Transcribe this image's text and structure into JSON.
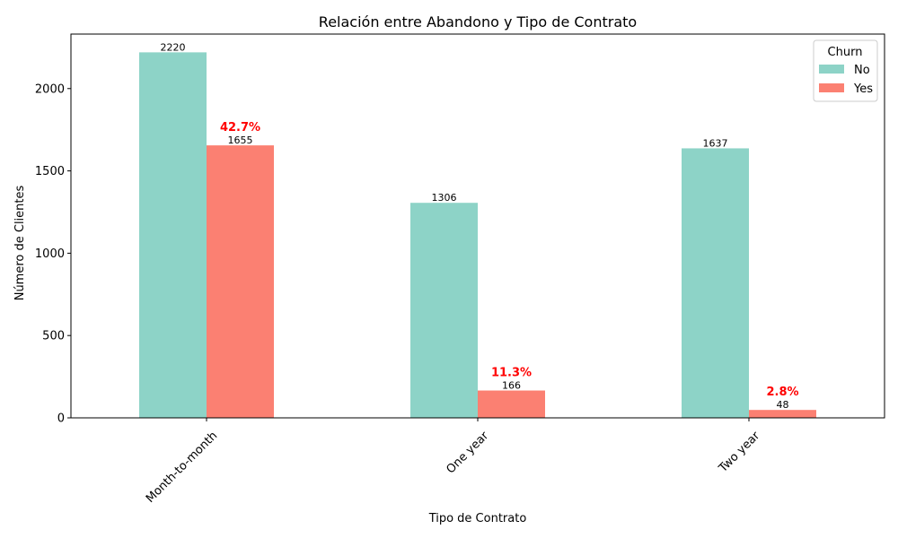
{
  "chart_data": {
    "type": "bar",
    "title": "Relación entre Abandono y Tipo de Contrato",
    "xlabel": "Tipo de Contrato",
    "ylabel": "Número de Clientes",
    "categories": [
      "Month-to-month",
      "One year",
      "Two year"
    ],
    "series": [
      {
        "name": "No",
        "values": [
          2220,
          1306,
          1637
        ],
        "color": "#8dd3c7"
      },
      {
        "name": "Yes",
        "values": [
          1655,
          166,
          48
        ],
        "color": "#fb8072"
      }
    ],
    "churn_rate_labels": [
      "42.7%",
      "11.3%",
      "2.8%"
    ],
    "churn_rate_color": "#ff0000",
    "ylim": [
      0,
      2331
    ],
    "yticks": [
      0,
      500,
      1000,
      1500,
      2000
    ],
    "legend": {
      "title": "Churn",
      "placement": "top-right"
    },
    "grid": false,
    "x_tick_rotation_deg": 45
  }
}
